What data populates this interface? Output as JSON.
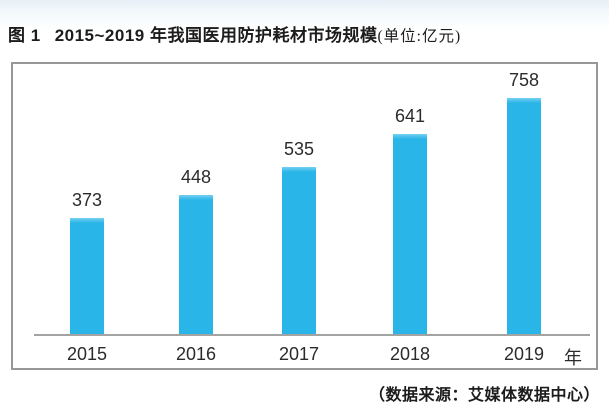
{
  "figure": {
    "label": "图 1",
    "title": "2015~2019 年我国医用防护耗材市场规模",
    "unit_note": "(单位:亿元)"
  },
  "chart_data": {
    "type": "bar",
    "title": "2015~2019 年我国医用防护耗材市场规模(单位:亿元)",
    "categories": [
      "2015",
      "2016",
      "2017",
      "2018",
      "2019"
    ],
    "values": [
      373,
      448,
      535,
      641,
      758
    ],
    "xlabel": "年",
    "ylabel": "亿元",
    "ylim": [
      0,
      800
    ],
    "bar_color": "#29b5e8",
    "value_labels_shown": true,
    "grid": false,
    "legend": false
  },
  "source_note": "（数据来源：艾媒体数据中心）"
}
